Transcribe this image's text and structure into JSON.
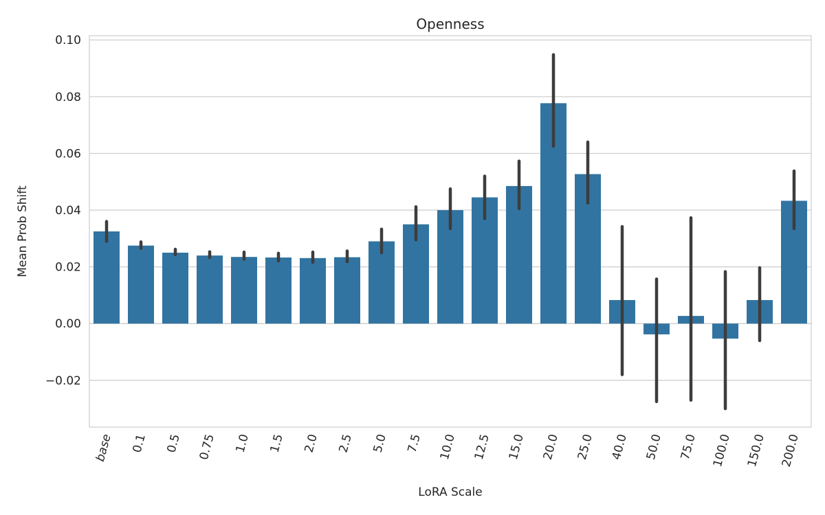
{
  "chart_data": {
    "type": "bar",
    "title": "Openness",
    "xlabel": "LoRA Scale",
    "ylabel": "Mean Prob Shift",
    "categories": [
      "base",
      "0.1",
      "0.5",
      "0.75",
      "1.0",
      "1.5",
      "2.0",
      "2.5",
      "5.0",
      "7.5",
      "10.0",
      "12.5",
      "15.0",
      "20.0",
      "25.0",
      "40.0",
      "50.0",
      "75.0",
      "100.0",
      "150.0",
      "200.0"
    ],
    "values": [
      0.0325,
      0.0275,
      0.025,
      0.024,
      0.0235,
      0.0233,
      0.0231,
      0.0234,
      0.029,
      0.035,
      0.04,
      0.0445,
      0.0485,
      0.0777,
      0.0527,
      0.0083,
      -0.0038,
      0.0027,
      -0.0053,
      0.0083,
      0.0433
    ],
    "error_low": [
      0.029,
      0.0265,
      0.0243,
      0.0233,
      0.0227,
      0.0221,
      0.0216,
      0.0218,
      0.025,
      0.0295,
      0.0335,
      0.037,
      0.0405,
      0.0625,
      0.0425,
      -0.018,
      -0.0275,
      -0.027,
      -0.03,
      -0.006,
      0.0335
    ],
    "error_high": [
      0.036,
      0.0288,
      0.0262,
      0.0253,
      0.0252,
      0.0248,
      0.0252,
      0.0256,
      0.0333,
      0.0412,
      0.0475,
      0.052,
      0.0573,
      0.0948,
      0.064,
      0.0342,
      0.0157,
      0.0373,
      0.0183,
      0.0197,
      0.0538
    ],
    "yticks": [
      "−0.02",
      "0.00",
      "0.02",
      "0.04",
      "0.06",
      "0.08",
      "0.10"
    ],
    "ytick_values": [
      -0.02,
      0.0,
      0.02,
      0.04,
      0.06,
      0.08,
      0.1
    ],
    "ylim": [
      -0.0365,
      0.1015
    ],
    "grid": true,
    "bar_color": "#3274a1",
    "error_color": "#3d3d3d",
    "grid_color": "#cccccc"
  }
}
